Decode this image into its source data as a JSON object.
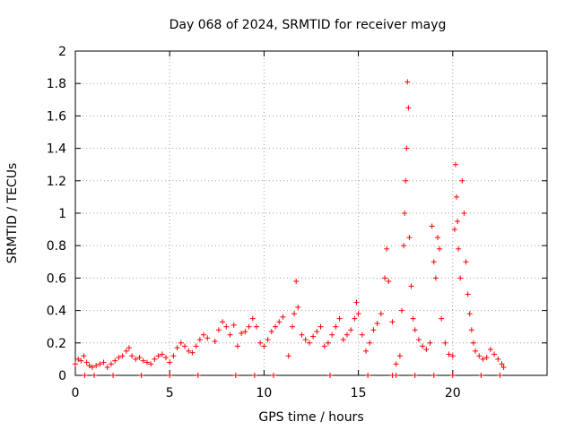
{
  "chart_data": {
    "type": "scatter",
    "title": "Day 068 of 2024, SRMTID for receiver mayg",
    "xlabel": "GPS time / hours",
    "ylabel": "SRMTID / TECUs",
    "xlim": [
      0,
      25
    ],
    "ylim": [
      0,
      2
    ],
    "xticks": [
      0,
      5,
      10,
      15,
      20
    ],
    "yticks": [
      0,
      0.2,
      0.4,
      0.6,
      0.8,
      1,
      1.2,
      1.4,
      1.6,
      1.8,
      2
    ],
    "xtick_labels": [
      "0",
      "5",
      "10",
      "15",
      "20"
    ],
    "ytick_labels": [
      "0",
      "0.2",
      "0.4",
      "0.6",
      "0.8",
      "1",
      "1.2",
      "1.4",
      "1.6",
      "1.8",
      "2"
    ],
    "grid": true,
    "marker": "+",
    "color": "#ff0000",
    "series": [
      {
        "name": "SRMTID",
        "x": [
          0.0,
          0.15,
          0.3,
          0.45,
          0.6,
          0.75,
          0.9,
          1.1,
          1.3,
          1.5,
          1.7,
          1.9,
          2.1,
          2.3,
          2.5,
          2.7,
          2.85,
          3.0,
          3.2,
          3.4,
          3.6,
          3.8,
          4.0,
          4.2,
          4.4,
          4.6,
          4.8,
          5.0,
          5.2,
          5.4,
          5.6,
          5.8,
          6.0,
          6.2,
          6.4,
          6.6,
          6.8,
          7.0,
          7.4,
          7.6,
          7.8,
          8.0,
          8.2,
          8.4,
          8.6,
          8.8,
          9.0,
          9.2,
          9.4,
          9.6,
          9.8,
          10.0,
          10.2,
          10.4,
          10.6,
          10.8,
          11.0,
          11.3,
          11.5,
          11.6,
          11.7,
          11.8,
          12.0,
          12.2,
          12.4,
          12.6,
          12.8,
          13.0,
          13.2,
          13.4,
          13.6,
          13.8,
          14.0,
          14.2,
          14.4,
          14.6,
          14.8,
          14.9,
          15.0,
          15.2,
          15.4,
          15.6,
          15.8,
          16.0,
          16.2,
          16.4,
          16.5,
          16.6,
          16.8,
          17.0,
          17.2,
          17.3,
          17.4,
          17.45,
          17.5,
          17.55,
          17.6,
          17.65,
          17.7,
          17.8,
          17.9,
          18.0,
          18.2,
          18.4,
          18.6,
          18.8,
          18.9,
          19.0,
          19.1,
          19.2,
          19.3,
          19.4,
          19.6,
          19.8,
          20.0,
          20.1,
          20.15,
          20.2,
          20.25,
          20.3,
          20.4,
          20.5,
          20.6,
          20.7,
          20.8,
          20.9,
          21.0,
          21.1,
          21.2,
          21.4,
          21.6,
          21.8,
          22.0,
          22.2,
          22.4,
          22.6,
          22.7,
          0.5,
          1.0,
          2.0,
          3.5,
          5.0,
          6.5,
          8.5,
          9.5,
          10.5,
          13.5,
          15.5,
          16.8,
          17.0,
          18.0,
          19.0,
          20.0,
          21.5,
          22.5
        ],
        "y": [
          0.07,
          0.1,
          0.09,
          0.12,
          0.08,
          0.06,
          0.05,
          0.06,
          0.07,
          0.08,
          0.05,
          0.07,
          0.09,
          0.11,
          0.12,
          0.15,
          0.17,
          0.12,
          0.1,
          0.11,
          0.09,
          0.08,
          0.07,
          0.1,
          0.12,
          0.13,
          0.11,
          0.08,
          0.12,
          0.17,
          0.2,
          0.18,
          0.15,
          0.14,
          0.18,
          0.22,
          0.25,
          0.23,
          0.21,
          0.28,
          0.33,
          0.3,
          0.25,
          0.31,
          0.18,
          0.26,
          0.27,
          0.3,
          0.35,
          0.3,
          0.2,
          0.18,
          0.22,
          0.27,
          0.3,
          0.33,
          0.36,
          0.12,
          0.3,
          0.38,
          0.58,
          0.42,
          0.25,
          0.22,
          0.2,
          0.24,
          0.27,
          0.3,
          0.18,
          0.2,
          0.25,
          0.3,
          0.35,
          0.22,
          0.25,
          0.28,
          0.35,
          0.45,
          0.38,
          0.25,
          0.15,
          0.2,
          0.28,
          0.32,
          0.38,
          0.6,
          0.78,
          0.58,
          0.33,
          0.07,
          0.12,
          0.4,
          0.8,
          1.0,
          1.2,
          1.4,
          1.81,
          1.65,
          0.85,
          0.55,
          0.35,
          0.28,
          0.22,
          0.18,
          0.16,
          0.2,
          0.92,
          0.7,
          0.6,
          0.85,
          0.78,
          0.35,
          0.2,
          0.13,
          0.12,
          0.9,
          1.3,
          1.1,
          0.95,
          0.78,
          0.6,
          1.2,
          1.0,
          0.7,
          0.5,
          0.38,
          0.28,
          0.2,
          0.15,
          0.12,
          0.1,
          0.11,
          0.16,
          0.13,
          0.1,
          0.07,
          0.05,
          0.0,
          0.0,
          0.0,
          0.0,
          0.0,
          0.0,
          0.0,
          0.0,
          0.0,
          0.0,
          0.0,
          0.0,
          0.0,
          0.0,
          0.0,
          0.0,
          0.0,
          0.0
        ]
      }
    ]
  }
}
